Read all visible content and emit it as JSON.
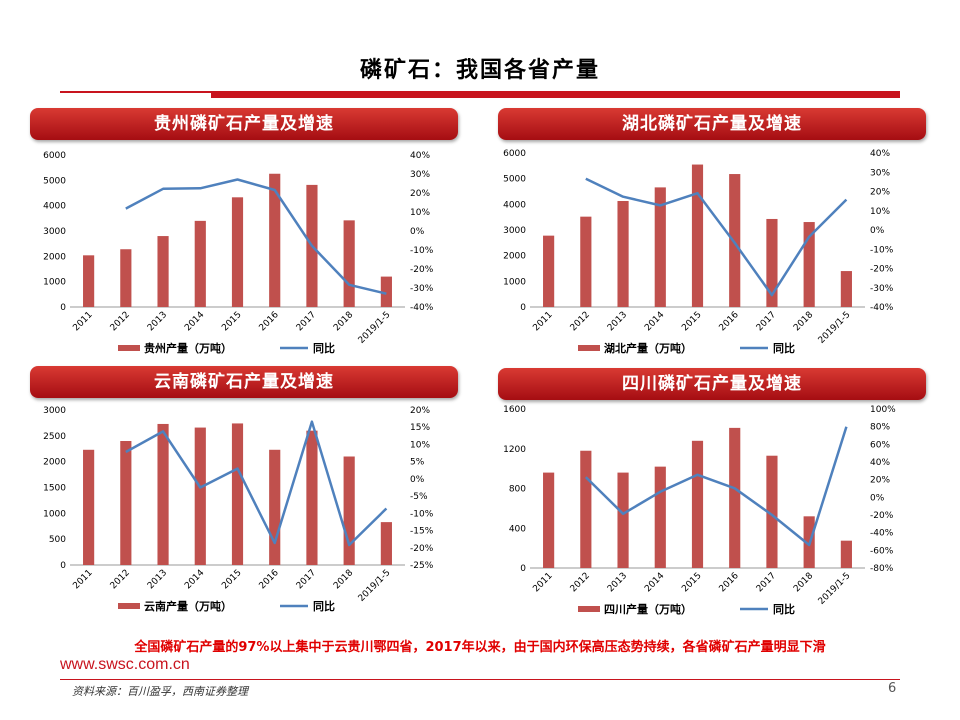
{
  "slide": {
    "title": "磷矿石：我国各省产量",
    "note": "全国磷矿石产量的97%以上集中于云贵川鄂四省，2017年以来，由于国内环保高压态势持续，各省磷矿石产量明显下滑",
    "url": "www.swsc.com.cn",
    "source": "资料来源：百川盈孚，西南证券整理",
    "page_number": "6"
  },
  "colors": {
    "bar": "#c0504d",
    "line": "#4f81bd",
    "accent": "#c8141e"
  },
  "chart_data": [
    {
      "type": "bar",
      "title": "贵州磷矿石产量及增速",
      "categories": [
        "2011",
        "2012",
        "2013",
        "2014",
        "2015",
        "2016",
        "2017",
        "2018",
        "2019/1-5"
      ],
      "series": [
        {
          "name": "贵州产量（万吨）",
          "type": "bar",
          "axis": "left",
          "values": [
            2040,
            2280,
            2800,
            3400,
            4330,
            5260,
            4820,
            3420,
            1200
          ]
        },
        {
          "name": "同比",
          "type": "line",
          "axis": "right",
          "values": [
            null,
            11.8,
            22.2,
            22.5,
            27.1,
            21.6,
            -7.8,
            -28.3,
            -33.0
          ]
        }
      ],
      "yleft": {
        "min": 0,
        "max": 6000,
        "ticks": [
          "0",
          "1000",
          "2000",
          "3000",
          "4000",
          "5000",
          "6000"
        ]
      },
      "yright": {
        "min": -40,
        "max": 40,
        "ticks": [
          "-40%",
          "-30%",
          "-20%",
          "-10%",
          "0%",
          "10%",
          "20%",
          "30%",
          "40%"
        ]
      }
    },
    {
      "type": "bar",
      "title": "湖北磷矿石产量及增速",
      "categories": [
        "2011",
        "2012",
        "2013",
        "2014",
        "2015",
        "2016",
        "2017",
        "2018",
        "2019/1-5"
      ],
      "series": [
        {
          "name": "湖北产量（万吨）",
          "type": "bar",
          "axis": "left",
          "values": [
            2780,
            3520,
            4130,
            4660,
            5550,
            5180,
            3430,
            3310,
            1400
          ]
        },
        {
          "name": "同比",
          "type": "line",
          "axis": "right",
          "values": [
            null,
            26.6,
            17.3,
            12.8,
            19.1,
            -6.7,
            -33.8,
            -3.5,
            15.8
          ]
        }
      ],
      "yleft": {
        "min": 0,
        "max": 6000,
        "ticks": [
          "0",
          "1000",
          "2000",
          "3000",
          "4000",
          "5000",
          "6000"
        ]
      },
      "yright": {
        "min": -40,
        "max": 40,
        "ticks": [
          "-40%",
          "-30%",
          "-20%",
          "-10%",
          "0%",
          "10%",
          "20%",
          "30%",
          "40%"
        ]
      }
    },
    {
      "type": "bar",
      "title": "云南磷矿石产量及增速",
      "categories": [
        "2011",
        "2012",
        "2013",
        "2014",
        "2015",
        "2016",
        "2017",
        "2018",
        "2019/1-5"
      ],
      "series": [
        {
          "name": "云南产量（万吨）",
          "type": "bar",
          "axis": "left",
          "values": [
            2230,
            2400,
            2730,
            2660,
            2740,
            2230,
            2600,
            2100,
            830
          ]
        },
        {
          "name": "同比",
          "type": "line",
          "axis": "right",
          "values": [
            null,
            7.8,
            13.8,
            -2.5,
            3.0,
            -18.6,
            16.6,
            -19.2,
            -8.6
          ]
        }
      ],
      "yleft": {
        "min": 0,
        "max": 3000,
        "ticks": [
          "0",
          "500",
          "1000",
          "1500",
          "2000",
          "2500",
          "3000"
        ]
      },
      "yright": {
        "min": -25,
        "max": 20,
        "ticks": [
          "-25%",
          "-20%",
          "-15%",
          "-10%",
          "-5%",
          "0%",
          "5%",
          "10%",
          "15%",
          "20%"
        ]
      }
    },
    {
      "type": "bar",
      "title": "四川磷矿石产量及增速",
      "categories": [
        "2011",
        "2012",
        "2013",
        "2014",
        "2015",
        "2016",
        "2017",
        "2018",
        "2019/1-5"
      ],
      "series": [
        {
          "name": "四川产量（万吨）",
          "type": "bar",
          "axis": "left",
          "values": [
            960,
            1180,
            960,
            1020,
            1280,
            1410,
            1130,
            520,
            275
          ]
        },
        {
          "name": "同比",
          "type": "line",
          "axis": "right",
          "values": [
            null,
            22.9,
            -18.6,
            6.3,
            25.5,
            10.2,
            -19.9,
            -54.0,
            80.0
          ]
        }
      ],
      "yleft": {
        "min": 0,
        "max": 1600,
        "ticks": [
          "0",
          "400",
          "800",
          "1200",
          "1600"
        ]
      },
      "yright": {
        "min": -80,
        "max": 100,
        "ticks": [
          "-80%",
          "-60%",
          "-40%",
          "-20%",
          "0%",
          "20%",
          "40%",
          "60%",
          "80%",
          "100%"
        ]
      }
    }
  ]
}
